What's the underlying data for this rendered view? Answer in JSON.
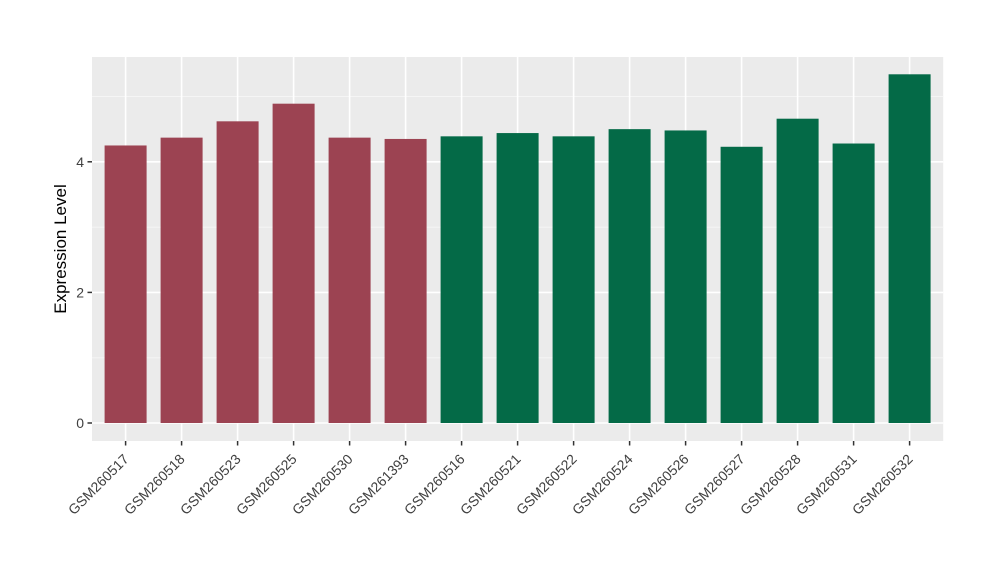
{
  "chart_data": {
    "type": "bar",
    "title": "",
    "xlabel": "",
    "ylabel": "Expression Level",
    "categories": [
      "GSM260517",
      "GSM260518",
      "GSM260523",
      "GSM260525",
      "GSM260530",
      "GSM261393",
      "GSM260516",
      "GSM260521",
      "GSM260522",
      "GSM260524",
      "GSM260526",
      "GSM260527",
      "GSM260528",
      "GSM260531",
      "GSM260532"
    ],
    "values": [
      4.25,
      4.37,
      4.62,
      4.89,
      4.37,
      4.35,
      4.39,
      4.44,
      4.39,
      4.5,
      4.48,
      4.23,
      4.66,
      4.28,
      5.34
    ],
    "bar_groups": [
      "groupA",
      "groupA",
      "groupA",
      "groupA",
      "groupA",
      "groupA",
      "groupB",
      "groupB",
      "groupB",
      "groupB",
      "groupB",
      "groupB",
      "groupB",
      "groupB",
      "groupB"
    ],
    "palette": {
      "groupA": "#9C4352",
      "groupB": "#046A47"
    },
    "yticks": [
      0,
      2,
      4
    ],
    "yticks_minor": [
      1,
      3,
      5
    ],
    "ylim": [
      -0.27,
      5.62
    ],
    "x_tick_rotation": 45,
    "legend_position": "none",
    "grid": "on",
    "colors": {
      "panel_background": "#EBEBEB",
      "grid_major": "#FFFFFF",
      "grid_minor": "#F5F5F5",
      "tick_mark": "#333333",
      "tick_label": "#404040",
      "axis_title": "#000000",
      "figure_background": "#FFFFFF"
    }
  }
}
